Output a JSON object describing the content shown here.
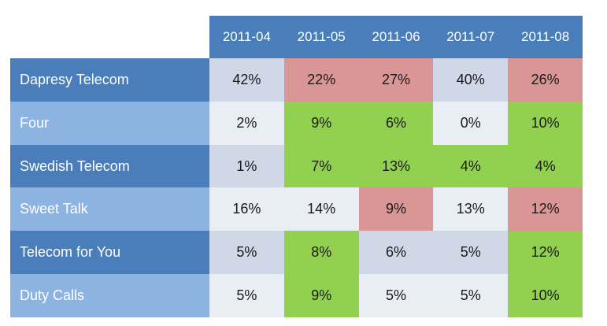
{
  "chart_data": {
    "type": "heatmap",
    "title": "",
    "colors": {
      "header_bg": "#4a7ebb",
      "header_text": "#ffffff",
      "row_label_dark": "#4a7ebb",
      "row_label_light": "#8db3e2",
      "neutral_dark": "#d0d8e8",
      "neutral_light": "#e9edf4",
      "high": "#92d050",
      "low": "#d99694"
    },
    "columns": [
      "2011-04",
      "2011-05",
      "2011-06",
      "2011-07",
      "2011-08"
    ],
    "rows": [
      {
        "name": "Dapresy Telecom",
        "values": [
          "42%",
          "22%",
          "27%",
          "40%",
          "26%"
        ],
        "status": [
          "neutral",
          "low",
          "low",
          "neutral",
          "low"
        ]
      },
      {
        "name": "Four",
        "values": [
          "2%",
          "9%",
          "6%",
          "0%",
          "10%"
        ],
        "status": [
          "neutral",
          "high",
          "high",
          "neutral",
          "high"
        ]
      },
      {
        "name": "Swedish Telecom",
        "values": [
          "1%",
          "7%",
          "13%",
          "4%",
          "4%"
        ],
        "status": [
          "neutral",
          "high",
          "high",
          "high",
          "high"
        ]
      },
      {
        "name": "Sweet Talk",
        "values": [
          "16%",
          "14%",
          "9%",
          "13%",
          "12%"
        ],
        "status": [
          "neutral",
          "neutral",
          "low",
          "neutral",
          "low"
        ]
      },
      {
        "name": "Telecom for You",
        "values": [
          "5%",
          "8%",
          "6%",
          "5%",
          "12%"
        ],
        "status": [
          "neutral",
          "high",
          "neutral",
          "neutral",
          "high"
        ]
      },
      {
        "name": "Duty Calls",
        "values": [
          "5%",
          "9%",
          "5%",
          "5%",
          "10%"
        ],
        "status": [
          "neutral",
          "high",
          "neutral",
          "neutral",
          "high"
        ]
      }
    ]
  }
}
